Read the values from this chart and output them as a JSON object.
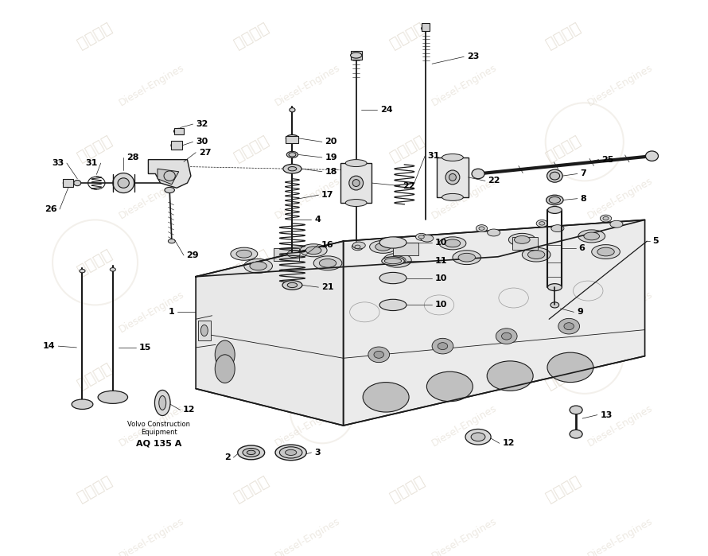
{
  "bg_color": "#ffffff",
  "line_color": "#1a1a1a",
  "wm_color": "#d8cfc0",
  "subtitle_line1": "Volvo Construction",
  "subtitle_line2": "Equipment",
  "subtitle_line3": "AQ 135 A",
  "figw": 8.9,
  "figh": 6.99,
  "dpi": 100
}
